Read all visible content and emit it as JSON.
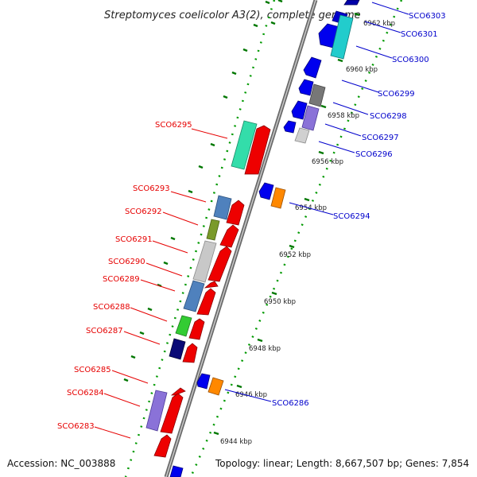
{
  "title": "Streptomyces coelicolor A3(2), complete genome",
  "footer": {
    "accession": "Accession: NC_003888",
    "topology": "Topology: linear; Length: 8,667,507 bp; Genes: 7,854"
  },
  "colors": {
    "forward_gene": "#ee0000",
    "reverse_gene": "#0000dd",
    "ruler_tick": "#008800",
    "backbone": "#888888",
    "left_label": "#e60000",
    "right_label": "#0000cc"
  },
  "ruler_labels": [
    "6944 kbp",
    "6946 kbp",
    "6948 kbp",
    "6950 kbp",
    "6952 kbp",
    "6954 kbp",
    "6956 kbp",
    "6958 kbp",
    "6960 kbp",
    "6962 kbp"
  ],
  "left_gene_labels": [
    "SCO6295",
    "SCO6293",
    "SCO6292",
    "SCO6291",
    "SCO6290",
    "SCO6289",
    "SCO6288",
    "SCO6287",
    "SCO6285",
    "SCO6284",
    "SCO6283"
  ],
  "right_gene_labels": [
    "SCO6303",
    "SCO6301",
    "SCO6300",
    "SCO6299",
    "SCO6298",
    "SCO6297",
    "SCO6296",
    "SCO6294",
    "SCO6286"
  ]
}
